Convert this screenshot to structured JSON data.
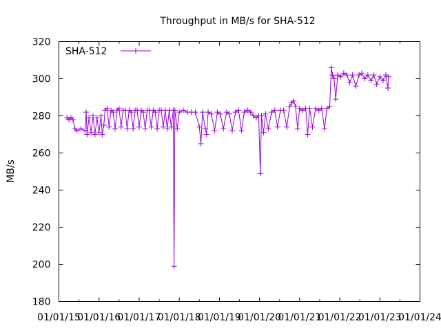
{
  "chart_data": {
    "type": "line",
    "title": "Throughput in MB/s for SHA-512",
    "xlabel": "",
    "ylabel": "MB/s",
    "ylim": [
      180,
      320
    ],
    "xlim": [
      2015,
      2024
    ],
    "yticks": [
      180,
      200,
      220,
      240,
      260,
      280,
      300,
      320
    ],
    "xticks": [
      {
        "value": 2015,
        "label": "01/01/15"
      },
      {
        "value": 2016,
        "label": "01/01/16"
      },
      {
        "value": 2017,
        "label": "01/01/17"
      },
      {
        "value": 2018,
        "label": "01/01/18"
      },
      {
        "value": 2019,
        "label": "01/01/19"
      },
      {
        "value": 2020,
        "label": "01/01/20"
      },
      {
        "value": 2021,
        "label": "01/01/21"
      },
      {
        "value": 2022,
        "label": "01/01/22"
      },
      {
        "value": 2023,
        "label": "01/01/23"
      },
      {
        "value": 2024,
        "label": "01/01/24"
      }
    ],
    "grid": false,
    "legend_position": "top-left",
    "series": [
      {
        "name": "SHA-512",
        "color": "#9400d3",
        "marker": "plus",
        "points": [
          [
            2015.2,
            279
          ],
          [
            2015.25,
            278
          ],
          [
            2015.3,
            279
          ],
          [
            2015.35,
            278
          ],
          [
            2015.4,
            273
          ],
          [
            2015.45,
            272
          ],
          [
            2015.55,
            273
          ],
          [
            2015.65,
            272
          ],
          [
            2015.68,
            282
          ],
          [
            2015.7,
            270
          ],
          [
            2015.75,
            279
          ],
          [
            2015.8,
            271
          ],
          [
            2015.85,
            280
          ],
          [
            2015.9,
            270
          ],
          [
            2015.95,
            279
          ],
          [
            2016.0,
            271
          ],
          [
            2016.05,
            280
          ],
          [
            2016.08,
            270
          ],
          [
            2016.12,
            275
          ],
          [
            2016.15,
            283
          ],
          [
            2016.2,
            284
          ],
          [
            2016.25,
            274
          ],
          [
            2016.3,
            283
          ],
          [
            2016.35,
            282
          ],
          [
            2016.4,
            273
          ],
          [
            2016.45,
            283
          ],
          [
            2016.5,
            284
          ],
          [
            2016.55,
            274
          ],
          [
            2016.6,
            283
          ],
          [
            2016.65,
            283
          ],
          [
            2016.7,
            273
          ],
          [
            2016.75,
            283
          ],
          [
            2016.8,
            282
          ],
          [
            2016.85,
            273
          ],
          [
            2016.9,
            283
          ],
          [
            2016.95,
            283
          ],
          [
            2017.0,
            274
          ],
          [
            2017.05,
            283
          ],
          [
            2017.1,
            282
          ],
          [
            2017.15,
            273
          ],
          [
            2017.2,
            283
          ],
          [
            2017.25,
            283
          ],
          [
            2017.3,
            274
          ],
          [
            2017.35,
            283
          ],
          [
            2017.4,
            282
          ],
          [
            2017.45,
            273
          ],
          [
            2017.5,
            283
          ],
          [
            2017.55,
            283
          ],
          [
            2017.6,
            274
          ],
          [
            2017.65,
            283
          ],
          [
            2017.7,
            273
          ],
          [
            2017.75,
            283
          ],
          [
            2017.8,
            274
          ],
          [
            2017.85,
            283
          ],
          [
            2017.87,
            199
          ],
          [
            2017.89,
            283
          ],
          [
            2017.95,
            273
          ],
          [
            2018.0,
            282
          ],
          [
            2018.1,
            283
          ],
          [
            2018.2,
            282
          ],
          [
            2018.3,
            282
          ],
          [
            2018.4,
            282
          ],
          [
            2018.5,
            274
          ],
          [
            2018.54,
            265
          ],
          [
            2018.58,
            282
          ],
          [
            2018.65,
            273
          ],
          [
            2018.68,
            270
          ],
          [
            2018.72,
            282
          ],
          [
            2018.8,
            281
          ],
          [
            2018.88,
            272
          ],
          [
            2018.95,
            282
          ],
          [
            2019.02,
            281
          ],
          [
            2019.1,
            273
          ],
          [
            2019.18,
            282
          ],
          [
            2019.25,
            281
          ],
          [
            2019.32,
            272
          ],
          [
            2019.4,
            282
          ],
          [
            2019.48,
            283
          ],
          [
            2019.55,
            272
          ],
          [
            2019.62,
            282
          ],
          [
            2019.7,
            283
          ],
          [
            2019.78,
            282
          ],
          [
            2019.85,
            280
          ],
          [
            2019.92,
            279
          ],
          [
            2019.98,
            280
          ],
          [
            2020.02,
            249
          ],
          [
            2020.05,
            280
          ],
          [
            2020.1,
            271
          ],
          [
            2020.15,
            281
          ],
          [
            2020.22,
            273
          ],
          [
            2020.3,
            282
          ],
          [
            2020.38,
            283
          ],
          [
            2020.45,
            274
          ],
          [
            2020.52,
            283
          ],
          [
            2020.6,
            283
          ],
          [
            2020.68,
            274
          ],
          [
            2020.75,
            285
          ],
          [
            2020.8,
            287
          ],
          [
            2020.85,
            288
          ],
          [
            2020.9,
            285
          ],
          [
            2020.95,
            273
          ],
          [
            2021.0,
            284
          ],
          [
            2021.08,
            283
          ],
          [
            2021.15,
            284
          ],
          [
            2021.2,
            270
          ],
          [
            2021.25,
            284
          ],
          [
            2021.32,
            274
          ],
          [
            2021.4,
            284
          ],
          [
            2021.48,
            283
          ],
          [
            2021.55,
            284
          ],
          [
            2021.62,
            273
          ],
          [
            2021.68,
            284
          ],
          [
            2021.75,
            285
          ],
          [
            2021.79,
            306
          ],
          [
            2021.82,
            302
          ],
          [
            2021.86,
            300
          ],
          [
            2021.9,
            289
          ],
          [
            2021.95,
            302
          ],
          [
            2022.02,
            301
          ],
          [
            2022.1,
            303
          ],
          [
            2022.18,
            302
          ],
          [
            2022.25,
            298
          ],
          [
            2022.32,
            302
          ],
          [
            2022.4,
            296
          ],
          [
            2022.48,
            302
          ],
          [
            2022.55,
            303
          ],
          [
            2022.62,
            300
          ],
          [
            2022.7,
            302
          ],
          [
            2022.78,
            299
          ],
          [
            2022.85,
            302
          ],
          [
            2022.92,
            297
          ],
          [
            2023.0,
            301
          ],
          [
            2023.08,
            299
          ],
          [
            2023.15,
            302
          ],
          [
            2023.2,
            295
          ],
          [
            2023.22,
            301
          ]
        ]
      }
    ]
  }
}
